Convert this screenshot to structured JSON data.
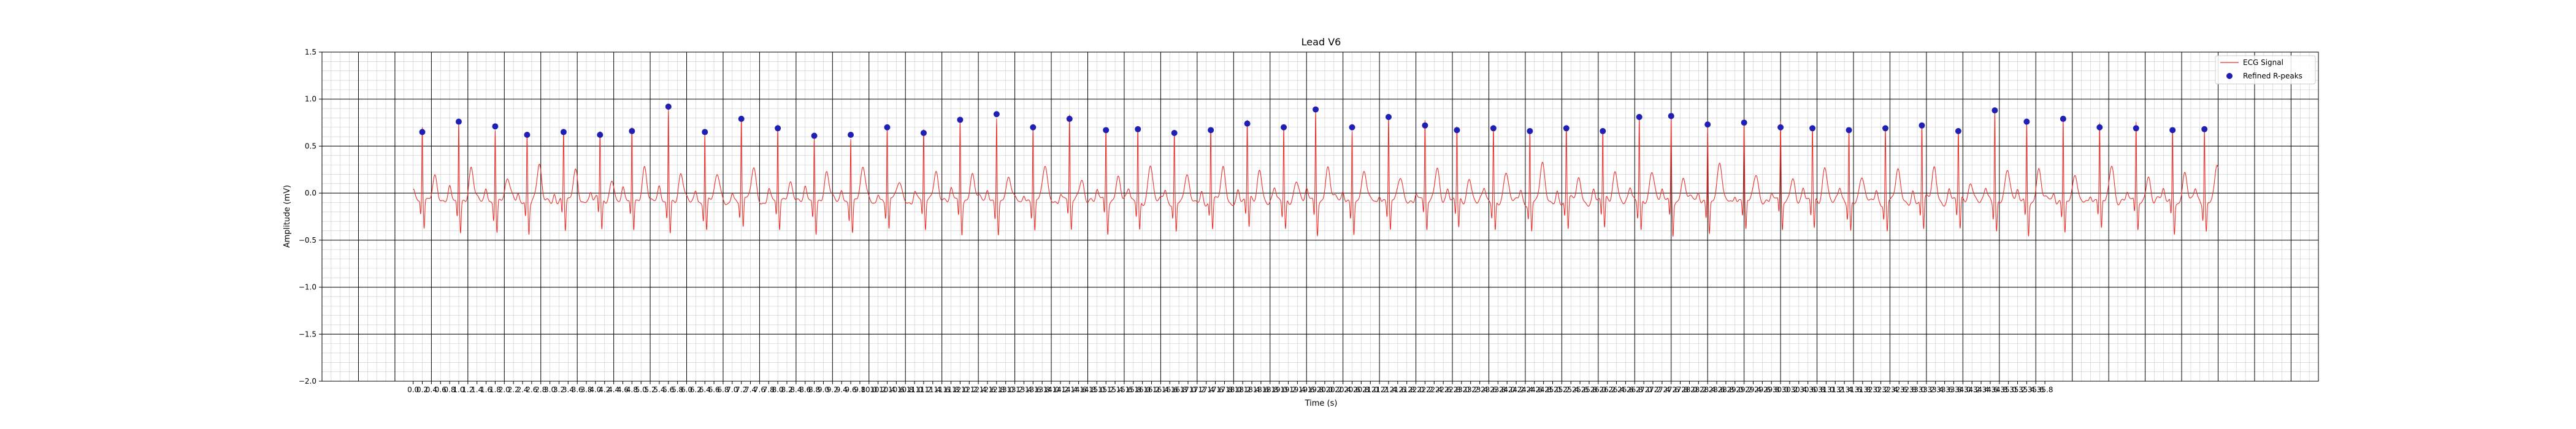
{
  "chart_data": {
    "type": "line",
    "title": "Lead V6",
    "xlabel": "Time (s)",
    "ylabel": "Amplitude (mV)",
    "xlim": [
      -2.0,
      41.8
    ],
    "ylim": [
      -2.0,
      1.5
    ],
    "yticks": [
      1.5,
      1.0,
      0.5,
      0.0,
      -0.5,
      -1.0,
      -1.5,
      -2.0
    ],
    "ytick_labels": [
      "1.5",
      "1.0",
      "0.5",
      "0.0",
      "−0.5",
      "−1.0",
      "−1.5",
      "−2.0"
    ],
    "xtick_start": 0.0,
    "xtick_step": 0.2,
    "xtick_count": 180,
    "major_line_step": 0.8,
    "grid": true,
    "legend": {
      "position": "top-right",
      "entries": [
        {
          "label": "ECG Signal",
          "color": "#e8302a",
          "marker": "line"
        },
        {
          "label": "Refined R-peaks",
          "color": "#1f1fb4",
          "marker": "dot"
        }
      ]
    },
    "series": [
      {
        "name": "ECG Signal",
        "signal_duration_s": 39.6,
        "baseline_mV": -0.08
      },
      {
        "name": "Refined R-peaks",
        "x": [
          0.2,
          1.0,
          1.8,
          2.5,
          3.3,
          4.1,
          4.8,
          5.6,
          6.4,
          7.2,
          8.0,
          8.8,
          9.6,
          10.4,
          11.2,
          12.0,
          12.8,
          13.6,
          14.4,
          15.2,
          15.9,
          16.7,
          17.5,
          18.3,
          19.1,
          19.8,
          20.6,
          21.4,
          22.2,
          22.9,
          23.7,
          24.5,
          25.3,
          26.1,
          26.9,
          27.6,
          28.4,
          29.2,
          30.0,
          30.7,
          31.5,
          32.3,
          33.1,
          33.9,
          34.7,
          35.4,
          36.2,
          37.0,
          37.8,
          38.6,
          39.3
        ],
        "values": [
          0.65,
          0.76,
          0.71,
          0.62,
          0.65,
          0.62,
          0.66,
          0.92,
          0.65,
          0.79,
          0.69,
          0.61,
          0.62,
          0.7,
          0.64,
          0.78,
          0.84,
          0.7,
          0.79,
          0.67,
          0.68,
          0.64,
          0.67,
          0.74,
          0.7,
          0.89,
          0.7,
          0.81,
          0.72,
          0.67,
          0.69,
          0.66,
          0.69,
          0.66,
          0.81,
          0.82,
          0.73,
          0.75,
          0.7,
          0.69,
          0.67,
          0.69,
          0.72,
          0.66,
          0.88,
          0.76,
          0.79,
          0.7,
          0.69,
          0.67,
          0.68
        ]
      }
    ]
  },
  "colors": {
    "signal": "#e8302a",
    "peak": "#1f1fb4",
    "major_grid": "#000000",
    "minor_grid": "#c8c8c8"
  }
}
